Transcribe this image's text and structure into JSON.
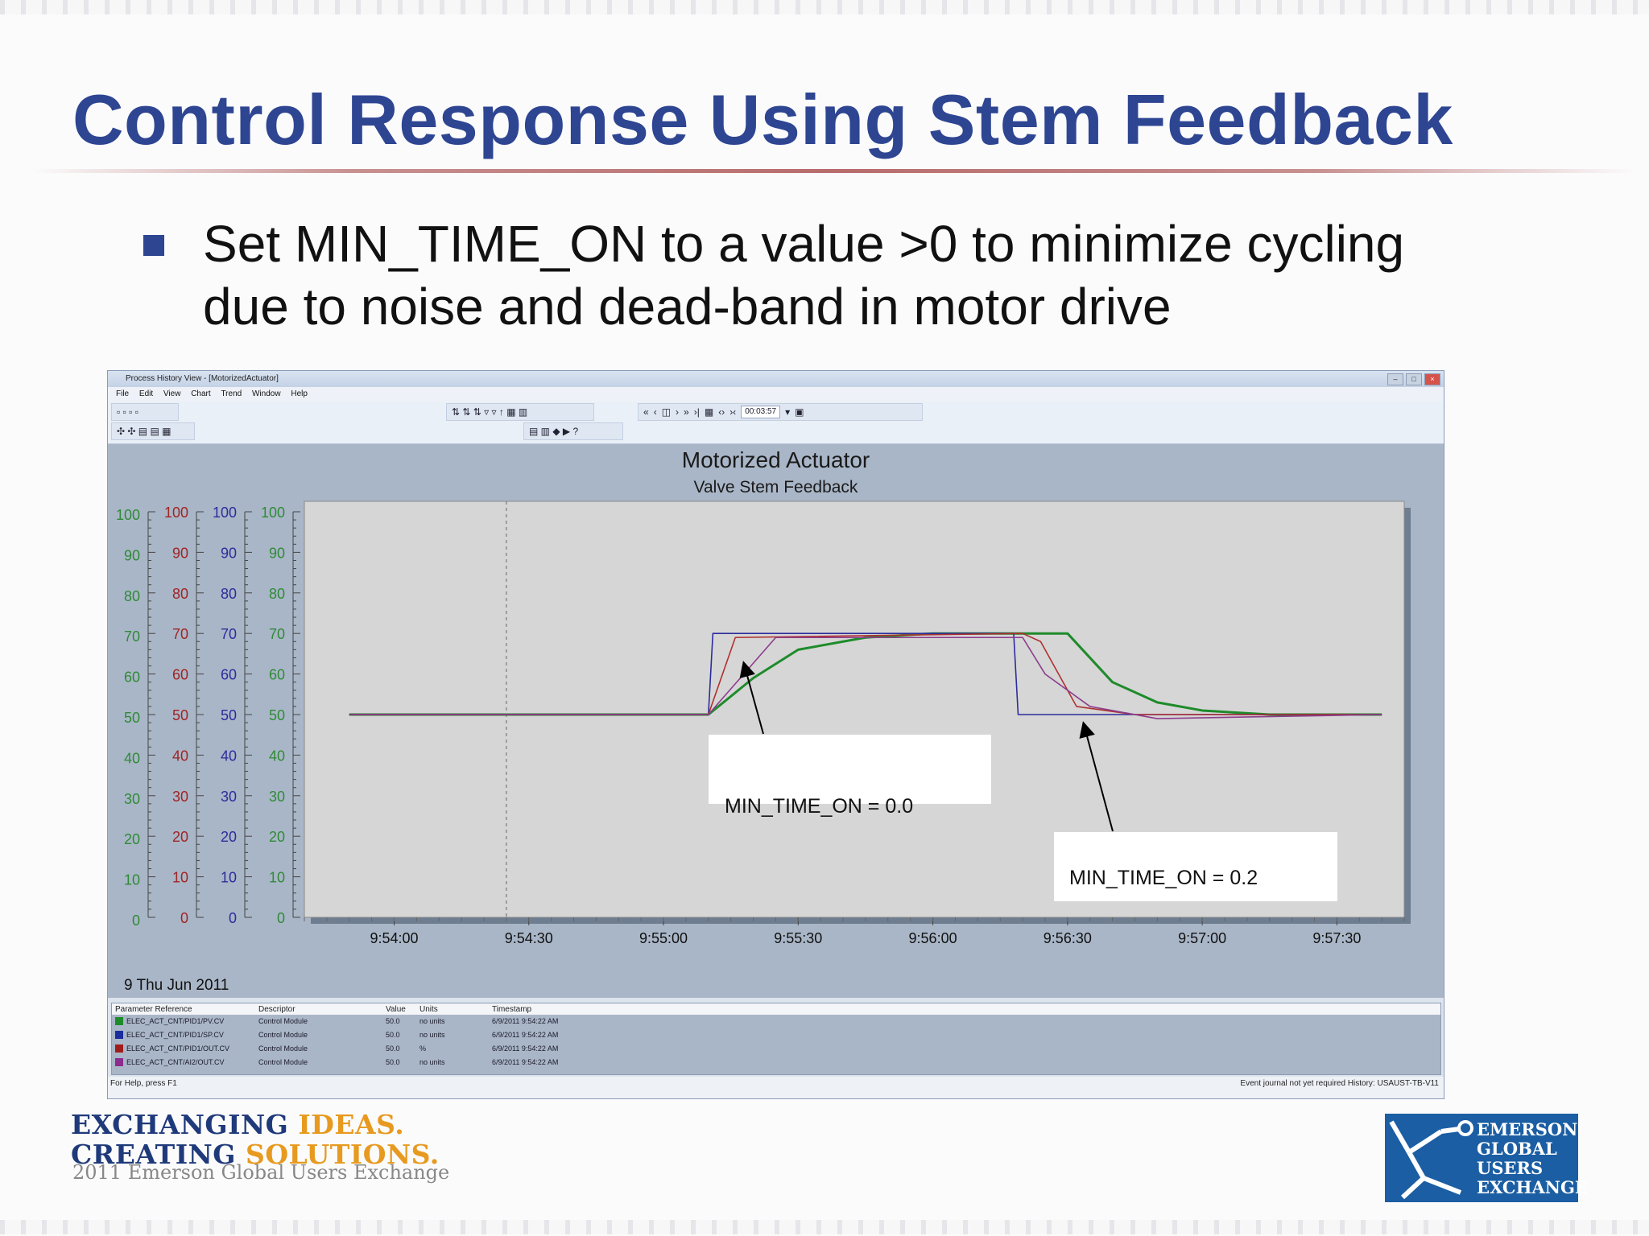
{
  "slide": {
    "title": "Control Response Using Stem Feedback",
    "bullet_line1": "Set MIN_TIME_ON to a value >0 to minimize cycling",
    "bullet_line2": "due to noise and dead-band in motor drive"
  },
  "window": {
    "title": "Process History View - [MotorizedActuator]",
    "menu": [
      "File",
      "Edit",
      "View",
      "Chart",
      "Trend",
      "Window",
      "Help"
    ],
    "time_span": "00:03:57"
  },
  "chart_data": {
    "type": "line",
    "title": "Motorized Actuator",
    "subtitle": "Valve Stem Feedback",
    "date_label": "9 Thu Jun 2011",
    "x_ticks": [
      "9:54:00",
      "9:54:30",
      "9:55:00",
      "9:55:30",
      "9:56:00",
      "9:56:30",
      "9:57:00",
      "9:57:30"
    ],
    "y_ticks": [
      "100",
      "90",
      "80",
      "70",
      "60",
      "50",
      "40",
      "30",
      "20",
      "10",
      "0"
    ],
    "ylim": [
      0,
      100
    ],
    "grid": false,
    "series": [
      {
        "color": "#1e8b2a",
        "x": [
          "9:53:50",
          "9:55:00",
          "9:55:10",
          "9:55:20",
          "9:55:30",
          "9:55:45",
          "9:56:00",
          "9:56:20",
          "9:56:30",
          "9:56:40",
          "9:56:50",
          "9:57:00",
          "9:57:15",
          "9:57:30",
          "9:57:40"
        ],
        "values": [
          50,
          50,
          50,
          59,
          66,
          69,
          70,
          70,
          70,
          58,
          53,
          51,
          50,
          50,
          50
        ]
      },
      {
        "color": "#2c2c9c",
        "x": [
          "9:53:50",
          "9:55:10",
          "9:55:11",
          "9:56:18",
          "9:56:19",
          "9:57:40"
        ],
        "values": [
          50,
          50,
          70,
          70,
          50,
          50
        ]
      },
      {
        "color": "#b03030",
        "x": [
          "9:53:50",
          "9:55:10",
          "9:55:16",
          "9:56:20",
          "9:56:24",
          "9:56:32",
          "9:56:45",
          "9:57:40"
        ],
        "values": [
          50,
          50,
          69,
          70,
          68,
          52,
          50,
          50
        ]
      },
      {
        "color": "#8c3c8c",
        "x": [
          "9:53:50",
          "9:55:10",
          "9:55:25",
          "9:56:20",
          "9:56:25",
          "9:56:35",
          "9:56:50",
          "9:57:40"
        ],
        "values": [
          50,
          50,
          69,
          69,
          60,
          52,
          49,
          50
        ]
      }
    ]
  },
  "annotations": {
    "a1": "MIN_TIME_ON = 0.0",
    "a2": "MIN_TIME_ON = 0.2"
  },
  "params": {
    "headers": [
      "Parameter Reference",
      "Descriptor",
      "Value",
      "Units",
      "Timestamp"
    ],
    "rows": [
      {
        "color": "#1e8b2a",
        "ref": "ELEC_ACT_CNT/PID1/PV.CV",
        "desc": "Control Module",
        "value": "50.0",
        "units": "no units",
        "ts": "6/9/2011 9:54:22 AM"
      },
      {
        "color": "#1b2c9c",
        "ref": "ELEC_ACT_CNT/PID1/SP.CV",
        "desc": "Control Module",
        "value": "50.0",
        "units": "no units",
        "ts": "6/9/2011 9:54:22 AM"
      },
      {
        "color": "#a01c1c",
        "ref": "ELEC_ACT_CNT/PID1/OUT.CV",
        "desc": "Control Module",
        "value": "50.0",
        "units": "%",
        "ts": "6/9/2011 9:54:22 AM"
      },
      {
        "color": "#8c2c8c",
        "ref": "ELEC_ACT_CNT/AI2/OUT.CV",
        "desc": "Control Module",
        "value": "50.0",
        "units": "no units",
        "ts": "6/9/2011 9:54:22 AM"
      }
    ]
  },
  "status": {
    "help": "For Help, press F1",
    "right": "Event journal not yet required  History: USAUST-TB-V11"
  },
  "footer": {
    "line1a": "EXCHANGING ",
    "line1b": "IDEAS.",
    "line2a": "CREATING ",
    "line2b": "SOLUTIONS.",
    "line3": "2011 Emerson Global Users Exchange",
    "logo_l1": "EMERSON",
    "logo_l2": "GLOBAL",
    "logo_l3": "USERS",
    "logo_l4": "EXCHANGE"
  }
}
